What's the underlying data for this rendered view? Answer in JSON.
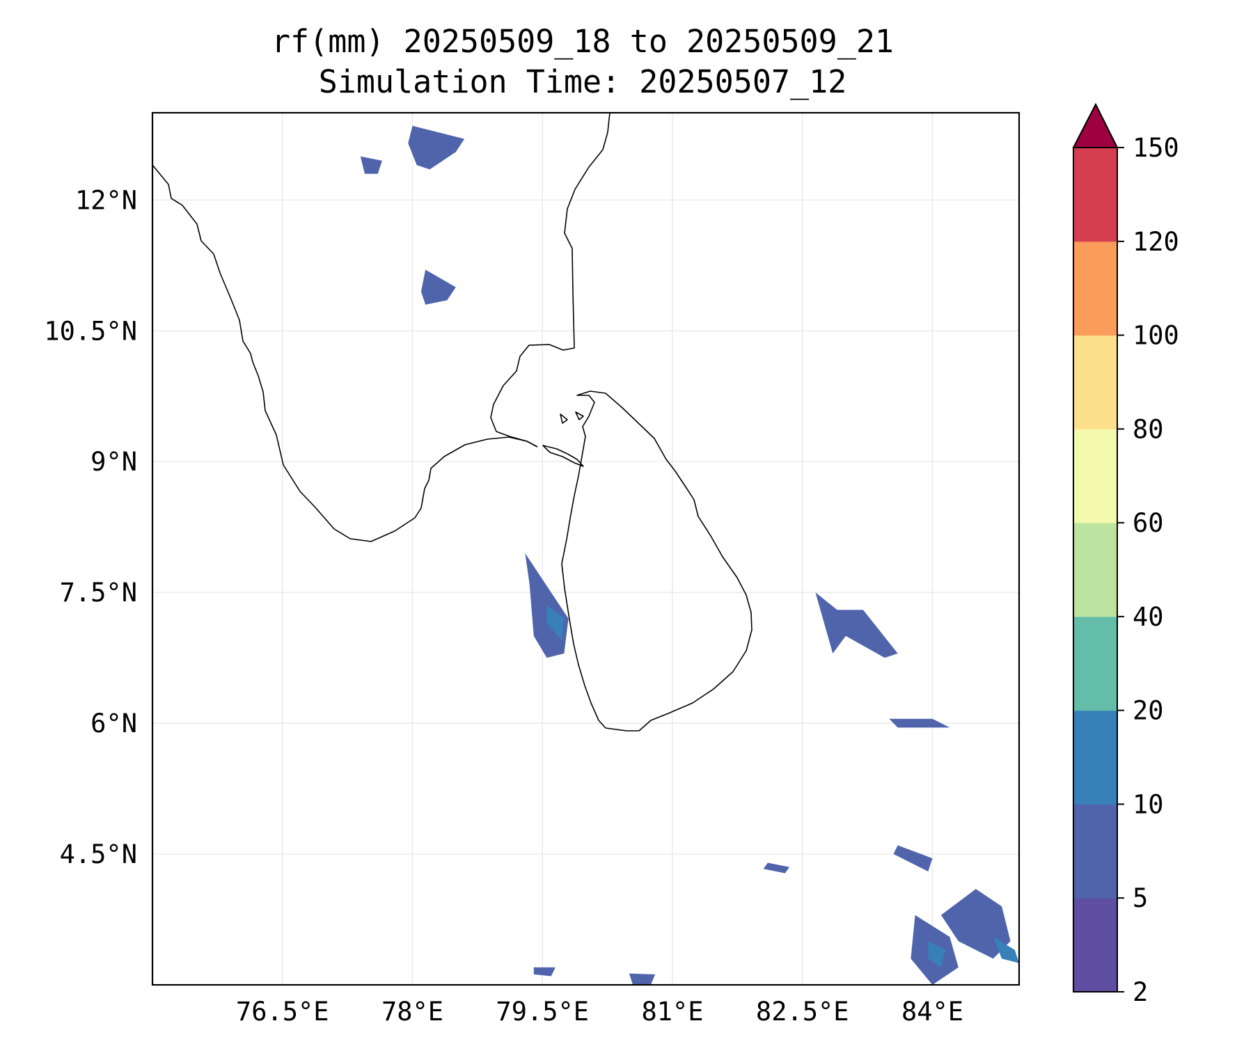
{
  "title_line1": "rf(mm) 20250509_18 to 20250509_21",
  "title_line2": "Simulation Time: 20250507_12",
  "chart_data": {
    "type": "heatmap",
    "variable": "rf(mm)",
    "lon_range": [
      75.0,
      85.0
    ],
    "lat_range": [
      3.0,
      13.0
    ],
    "x_ticks": [
      {
        "value": 76.5,
        "label": "76.5°E"
      },
      {
        "value": 78.0,
        "label": "78°E"
      },
      {
        "value": 79.5,
        "label": "79.5°E"
      },
      {
        "value": 81.0,
        "label": "81°E"
      },
      {
        "value": 82.5,
        "label": "82.5°E"
      },
      {
        "value": 84.0,
        "label": "84°E"
      }
    ],
    "y_ticks": [
      {
        "value": 12.0,
        "label": "12°N"
      },
      {
        "value": 10.5,
        "label": "10.5°N"
      },
      {
        "value": 9.0,
        "label": "9°N"
      },
      {
        "value": 7.5,
        "label": "7.5°N"
      },
      {
        "value": 6.0,
        "label": "6°N"
      },
      {
        "value": 4.5,
        "label": "4.5°N"
      }
    ],
    "grid": true,
    "colorbar": {
      "position": "right",
      "extend": "max",
      "extend_color": "#9e0142",
      "levels": [
        2,
        5,
        10,
        20,
        40,
        60,
        80,
        100,
        120,
        150
      ],
      "labels": [
        "2",
        "5",
        "10",
        "20",
        "40",
        "60",
        "80",
        "100",
        "120",
        "150"
      ],
      "colors": [
        "#5e4fa2",
        "#4f64ab",
        "#3880ba",
        "#63bda8",
        "#bde3a0",
        "#f4faad",
        "#fde08b",
        "#fa9c5a",
        "#d53e4f"
      ]
    },
    "rain_areas": [
      {
        "lon": [
          78.0,
          78.6,
          78.5,
          78.2,
          78.05,
          77.95,
          78.0
        ],
        "lat": [
          12.85,
          12.7,
          12.55,
          12.35,
          12.4,
          12.65,
          12.85
        ],
        "level": 1
      },
      {
        "lon": [
          77.4,
          77.65,
          77.6,
          77.45,
          77.4
        ],
        "lat": [
          12.5,
          12.45,
          12.3,
          12.3,
          12.5
        ],
        "level": 1
      },
      {
        "lon": [
          78.15,
          78.5,
          78.4,
          78.15,
          78.1,
          78.15
        ],
        "lat": [
          11.2,
          11.0,
          10.85,
          10.8,
          10.95,
          11.2
        ],
        "level": 1
      },
      {
        "lon": [
          79.3,
          79.6,
          79.8,
          79.75,
          79.55,
          79.4,
          79.35,
          79.3
        ],
        "lat": [
          7.95,
          7.5,
          7.2,
          6.8,
          6.75,
          7.0,
          7.6,
          7.95
        ],
        "level": 1
      },
      {
        "lon": [
          79.55,
          79.75,
          79.72,
          79.55
        ],
        "lat": [
          7.35,
          7.2,
          6.95,
          7.15
        ],
        "level": 2
      },
      {
        "lon": [
          82.65,
          82.9,
          83.2,
          83.6,
          83.45,
          83.0,
          82.85,
          82.65
        ],
        "lat": [
          7.5,
          7.3,
          7.3,
          6.8,
          6.75,
          7.0,
          6.8,
          7.5
        ],
        "level": 1
      },
      {
        "lon": [
          84.5,
          84.8,
          84.9,
          84.7,
          84.3,
          84.1,
          84.5
        ],
        "lat": [
          4.1,
          3.9,
          3.5,
          3.3,
          3.5,
          3.8,
          4.1
        ],
        "level": 1
      },
      {
        "lon": [
          84.7,
          84.95,
          85.0,
          84.8,
          84.7
        ],
        "lat": [
          3.55,
          3.4,
          3.25,
          3.3,
          3.55
        ],
        "level": 2
      },
      {
        "lon": [
          83.8,
          84.2,
          84.3,
          84.0,
          83.75,
          83.8
        ],
        "lat": [
          3.8,
          3.55,
          3.2,
          3.0,
          3.3,
          3.8
        ],
        "level": 1
      },
      {
        "lon": [
          83.95,
          84.15,
          84.1,
          83.95
        ],
        "lat": [
          3.5,
          3.4,
          3.2,
          3.3
        ],
        "level": 2
      },
      {
        "lon": [
          83.5,
          84.0,
          84.2,
          83.6,
          83.5
        ],
        "lat": [
          6.05,
          6.05,
          5.95,
          5.95,
          6.05
        ],
        "level": 1
      },
      {
        "lon": [
          83.6,
          84.0,
          83.95,
          83.55,
          83.6
        ],
        "lat": [
          4.6,
          4.45,
          4.3,
          4.5,
          4.6
        ],
        "level": 1
      },
      {
        "lon": [
          82.1,
          82.35,
          82.3,
          82.05,
          82.1
        ],
        "lat": [
          4.4,
          4.35,
          4.28,
          4.33,
          4.4
        ],
        "level": 1
      },
      {
        "lon": [
          79.4,
          79.65,
          79.6,
          79.4
        ],
        "lat": [
          3.2,
          3.2,
          3.1,
          3.12
        ],
        "level": 1
      },
      {
        "lon": [
          80.5,
          80.8,
          80.75,
          80.55,
          80.5
        ],
        "lat": [
          3.13,
          3.12,
          3.0,
          2.98,
          3.13
        ],
        "level": 1
      }
    ]
  }
}
